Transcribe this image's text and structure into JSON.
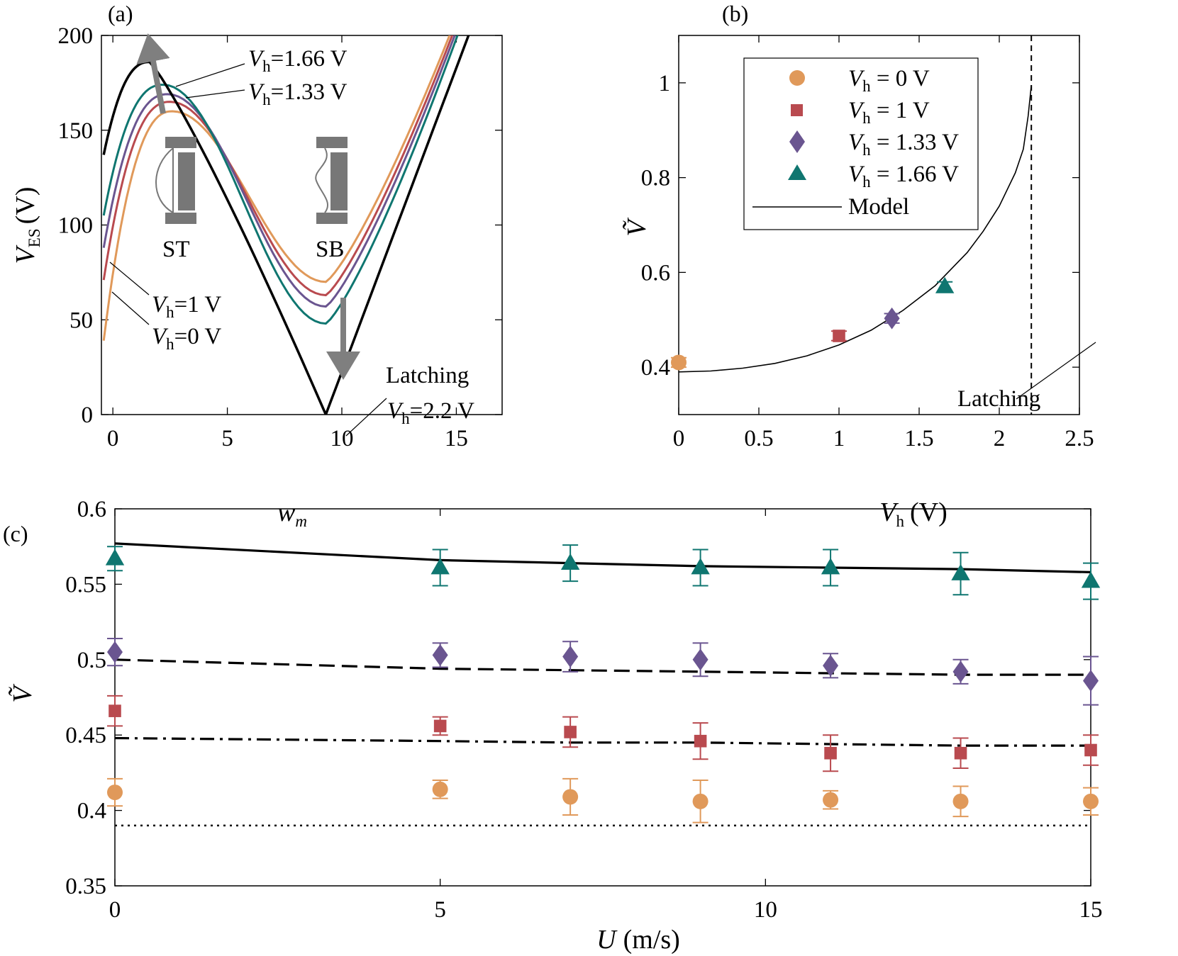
{
  "chart_data": [
    {
      "panel": "(a)",
      "type": "line",
      "xlabel_var": "w",
      "xlabel_sub": "m",
      "ylabel_var": "V",
      "ylabel_sub": "ES",
      "ylabel_unit": "(V)",
      "xlim": [
        -0.5,
        17
      ],
      "ylim": [
        0,
        200
      ],
      "xticks": [
        0,
        5,
        10,
        15
      ],
      "yticks": [
        0,
        50,
        100,
        150,
        200
      ],
      "series": [
        {
          "name": "Vh=0 V",
          "color": "#e0995a",
          "a0": 39,
          "peak_x": 2.6,
          "peak_y": 160,
          "valley_x": 9.3,
          "valley_y": 70,
          "end_x": 14.6
        },
        {
          "name": "Vh=1 V",
          "color": "#b94a4f",
          "a0": 71,
          "peak_x": 2.5,
          "peak_y": 165,
          "valley_x": 9.3,
          "valley_y": 63,
          "end_x": 14.7
        },
        {
          "name": "Vh=1.33 V",
          "color": "#6a5590",
          "a0": 88,
          "peak_x": 2.4,
          "peak_y": 169,
          "valley_x": 9.3,
          "valley_y": 57,
          "end_x": 14.8
        },
        {
          "name": "Vh=1.66 V",
          "color": "#0f7670",
          "a0": 105,
          "peak_x": 2.2,
          "peak_y": 174,
          "valley_x": 9.3,
          "valley_y": 48,
          "end_x": 14.9
        },
        {
          "name": "Vh=2.2 V",
          "color": "#000000",
          "a0": 137,
          "peak_x": 1.6,
          "peak_y": 186,
          "valley_x": 9.3,
          "valley_y": 0,
          "end_x": 15.4
        }
      ],
      "annotations": {
        "vh166": {
          "var": "V",
          "sub": "h",
          "text": "=1.66 V"
        },
        "vh133": {
          "var": "V",
          "sub": "h",
          "text": "=1.33 V"
        },
        "vh1": {
          "var": "V",
          "sub": "h",
          "text": "=1 V"
        },
        "vh0": {
          "var": "V",
          "sub": "h",
          "text": "=0 V"
        },
        "latching": "Latching",
        "vh22": {
          "var": "V",
          "sub": "h",
          "text": "=2.2 V"
        },
        "st": "ST",
        "sb": "SB"
      }
    },
    {
      "panel": "(b)",
      "type": "scatter",
      "xlabel_var": "V",
      "xlabel_sub": "h",
      "xlabel_unit": "(V)",
      "ylabel": "Ṽ",
      "xlim": [
        0,
        2.5
      ],
      "ylim": [
        0.3,
        1.1
      ],
      "xticks": [
        0,
        0.5,
        1,
        1.5,
        2,
        2.5
      ],
      "yticks": [
        0.4,
        0.6,
        0.8,
        1
      ],
      "points": [
        {
          "name": "V_h = 0 V",
          "x": 0,
          "y": 0.41,
          "err": 0.01,
          "marker": "circle",
          "color": "#e0995a"
        },
        {
          "name": "V_h = 1 V",
          "x": 1,
          "y": 0.466,
          "err": 0.01,
          "marker": "square",
          "color": "#b94a4f"
        },
        {
          "name": "V_h = 1.33 V",
          "x": 1.33,
          "y": 0.503,
          "err": 0.01,
          "marker": "diamond",
          "color": "#6a5590"
        },
        {
          "name": "V_h = 1.66 V",
          "x": 1.66,
          "y": 0.57,
          "err": 0.01,
          "marker": "triangle",
          "color": "#0f7670"
        }
      ],
      "model": {
        "name": "Model",
        "x": [
          0,
          0.2,
          0.4,
          0.6,
          0.8,
          1.0,
          1.2,
          1.4,
          1.6,
          1.8,
          1.9,
          2.0,
          2.1,
          2.15,
          2.18,
          2.2
        ],
        "y": [
          0.39,
          0.392,
          0.398,
          0.408,
          0.424,
          0.447,
          0.478,
          0.52,
          0.572,
          0.642,
          0.687,
          0.74,
          0.81,
          0.86,
          0.93,
          0.995
        ]
      },
      "latching_x": 2.2,
      "latching_label": "Latching",
      "legend": {
        "rows": [
          {
            "var": "V",
            "sub": "h",
            "text": " = 0 V"
          },
          {
            "var": "V",
            "sub": "h",
            "text": " = 1 V"
          },
          {
            "var": "V",
            "sub": "h",
            "text": " = 1.33 V"
          },
          {
            "var": "V",
            "sub": "h",
            "text": " = 1.66 V"
          }
        ],
        "model_label": "Model",
        "placement": "top-left"
      }
    },
    {
      "panel": "(c)",
      "type": "scatter",
      "xlabel_var": "U",
      "xlabel_unit": "(m/s)",
      "ylabel": "Ṽ",
      "xlim": [
        0,
        15
      ],
      "ylim": [
        0.35,
        0.6
      ],
      "xticks": [
        0,
        5,
        10,
        15
      ],
      "yticks": [
        0.35,
        0.4,
        0.45,
        0.5,
        0.55,
        0.6
      ],
      "x": [
        0,
        5,
        7,
        9,
        11,
        13,
        15
      ],
      "series": [
        {
          "name": "V_h = 1.66 V",
          "marker": "triangle",
          "color": "#0f7670",
          "values": [
            0.567,
            0.561,
            0.564,
            0.561,
            0.561,
            0.557,
            0.552
          ],
          "err": [
            0.008,
            0.012,
            0.012,
            0.012,
            0.012,
            0.014,
            0.012
          ],
          "model": [
            0.577,
            0.566,
            0.564,
            0.562,
            0.561,
            0.56,
            0.558
          ],
          "model_style": "solid"
        },
        {
          "name": "V_h = 1.33 V",
          "marker": "diamond",
          "color": "#6a5590",
          "values": [
            0.505,
            0.503,
            0.502,
            0.5,
            0.496,
            0.492,
            0.486
          ],
          "err": [
            0.009,
            0.008,
            0.01,
            0.011,
            0.008,
            0.008,
            0.016
          ],
          "model": [
            0.5,
            0.494,
            0.493,
            0.492,
            0.491,
            0.49,
            0.49
          ],
          "model_style": "dashed"
        },
        {
          "name": "V_h = 1 V",
          "marker": "square",
          "color": "#b94a4f",
          "values": [
            0.466,
            0.456,
            0.452,
            0.446,
            0.438,
            0.438,
            0.44
          ],
          "err": [
            0.01,
            0.006,
            0.01,
            0.012,
            0.012,
            0.01,
            0.01
          ],
          "model": [
            0.448,
            0.446,
            0.445,
            0.445,
            0.444,
            0.443,
            0.443
          ],
          "model_style": "dashdot"
        },
        {
          "name": "V_h = 0 V",
          "marker": "circle",
          "color": "#e0995a",
          "values": [
            0.412,
            0.414,
            0.409,
            0.406,
            0.407,
            0.406,
            0.406
          ],
          "err": [
            0.009,
            0.006,
            0.012,
            0.014,
            0.006,
            0.01,
            0.009
          ],
          "model": [
            0.39,
            0.39,
            0.39,
            0.39,
            0.39,
            0.39,
            0.39
          ],
          "model_style": "dotted"
        }
      ]
    }
  ]
}
